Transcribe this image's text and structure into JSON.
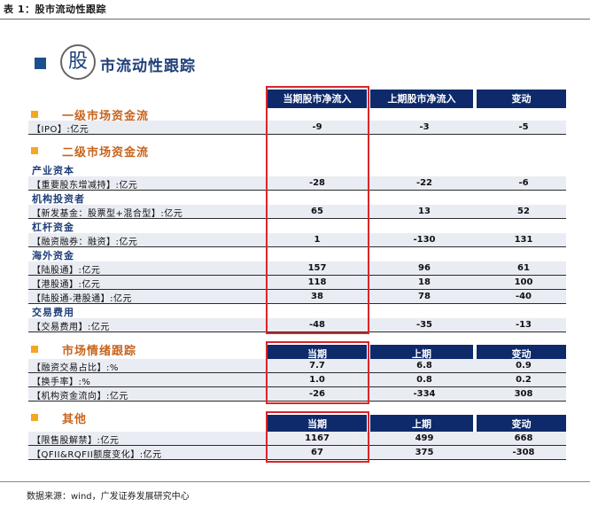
{
  "caption": "表 1：股市流动性跟踪",
  "heading": {
    "circle_char": "股",
    "title_rest": "市流动性跟踪"
  },
  "table1": {
    "headers": [
      "当期股市净流入",
      "上期股市净流入",
      "变动"
    ],
    "sections": [
      {
        "title": "一级市场资金流"
      },
      {
        "title": "二级市场资金流"
      }
    ],
    "subsections": [
      "产业资本",
      "机构投资者",
      "杠杆资金",
      "海外资金",
      "交易费用"
    ],
    "rows": [
      {
        "label": "【IPO】:亿元",
        "cur": "-9",
        "prev": "-3",
        "chg": "-5"
      },
      {
        "label": "【重要股东增减持】:亿元",
        "cur": "-28",
        "prev": "-22",
        "chg": "-6"
      },
      {
        "label": "【新发基金：股票型+混合型】:亿元",
        "cur": "65",
        "prev": "13",
        "chg": "52"
      },
      {
        "label": "【融资融券：融资】:亿元",
        "cur": "1",
        "prev": "-130",
        "chg": "131"
      },
      {
        "label": "【陆股通】:亿元",
        "cur": "157",
        "prev": "96",
        "chg": "61"
      },
      {
        "label": "【港股通】:亿元",
        "cur": "118",
        "prev": "18",
        "chg": "100"
      },
      {
        "label": "【陆股通-港股通】:亿元",
        "cur": "38",
        "prev": "78",
        "chg": "-40"
      },
      {
        "label": "【交易费用】:亿元",
        "cur": "-48",
        "prev": "-35",
        "chg": "-13"
      }
    ]
  },
  "table2": {
    "title": "市场情绪跟踪",
    "headers": [
      "当期",
      "上期",
      "变动"
    ],
    "rows": [
      {
        "label": "【融资交易占比】:%",
        "cur": "7.7",
        "prev": "6.8",
        "chg": "0.9"
      },
      {
        "label": "【换手率】:%",
        "cur": "1.0",
        "prev": "0.8",
        "chg": "0.2"
      },
      {
        "label": "【机构资金流向】:亿元",
        "cur": "-26",
        "prev": "-334",
        "chg": "308"
      }
    ]
  },
  "table3": {
    "title": "其他",
    "headers": [
      "当期",
      "上期",
      "变动"
    ],
    "rows": [
      {
        "label": "【限售股解禁】:亿元",
        "cur": "1167",
        "prev": "499",
        "chg": "668"
      },
      {
        "label": "【QFII&RQFII额度变化】:亿元",
        "cur": "67",
        "prev": "375",
        "chg": "-308"
      }
    ]
  },
  "footer": "数据来源：wind，广发证券发展研究中心",
  "colors": {
    "header_bg": "#0e2a6b",
    "section_title": "#c8641c",
    "bullet": "#f5a623",
    "sub_title": "#1f3f7a",
    "highlight_box": "#d9262c",
    "row_bg": "#e9ecf3"
  }
}
